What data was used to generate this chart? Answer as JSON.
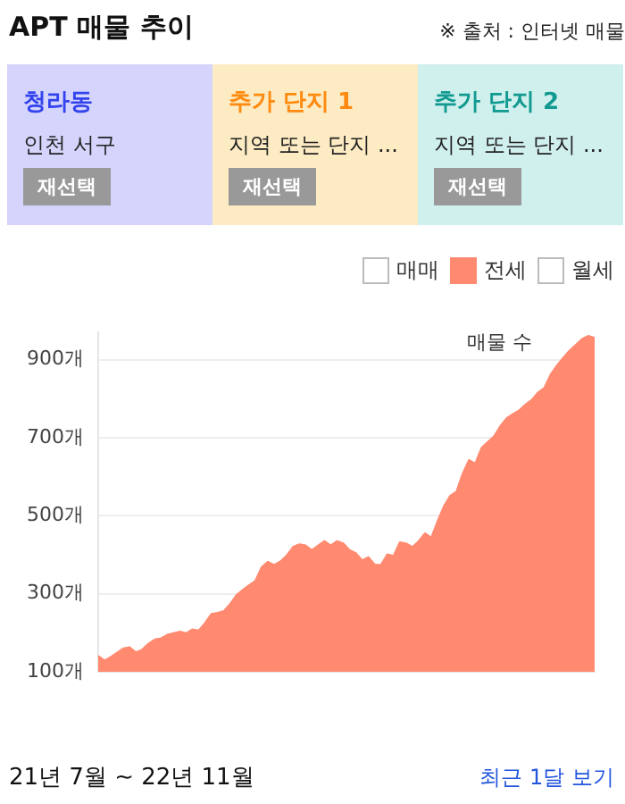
{
  "chart_data": {
    "type": "area",
    "title": "APT 매물 추이",
    "ylabel": "매물 수",
    "annotations": [
      "※ 출처 : 인터넷 매물",
      "청라동",
      "인천 서구",
      "재선택",
      "추가 단지 1",
      "지역 또는 단지 ...",
      "재선택",
      "추가 단지 2",
      "지역 또는 단지 ...",
      "재선택",
      "21년 7월 ~ 22년 11월",
      "최근 1달 보기"
    ],
    "categories": [
      null,
      null,
      null,
      null,
      null,
      null,
      null,
      null,
      null,
      null,
      null,
      null,
      null,
      null,
      null,
      null,
      null,
      null,
      null,
      null,
      null,
      null,
      null,
      null,
      null,
      null,
      null,
      null,
      null,
      null,
      null,
      null,
      null,
      null,
      null,
      null,
      null,
      null,
      null,
      null,
      null,
      null,
      null,
      null,
      null,
      null,
      null,
      null,
      null,
      null,
      null,
      null,
      null,
      null,
      null,
      null,
      null,
      null,
      null,
      null,
      null,
      null,
      null,
      null,
      null,
      null,
      null,
      null,
      null,
      null,
      null,
      null,
      null,
      null,
      null,
      null,
      null,
      null,
      null,
      null
    ],
    "series": [
      {
        "name": "매매",
        "color": "#ffffff",
        "values": [
          null,
          null,
          null,
          null,
          null,
          null,
          null,
          null,
          null,
          null,
          null,
          null,
          null,
          null,
          null,
          null,
          null,
          null,
          null,
          null,
          null,
          null,
          null,
          null,
          null,
          null,
          null,
          null,
          null,
          null,
          null,
          null,
          null,
          null,
          null,
          null,
          null,
          null,
          null,
          null,
          null,
          null,
          null,
          null,
          null,
          null,
          null,
          null,
          null,
          null,
          null,
          null,
          null,
          null,
          null,
          null,
          null,
          null,
          null,
          null,
          null,
          null,
          null,
          null,
          null,
          null,
          null,
          null,
          null,
          null,
          null,
          null,
          null,
          null,
          null,
          null,
          null,
          null,
          null,
          null
        ]
      },
      {
        "name": "전세",
        "color": "#ff8a70",
        "values": [
          141,
          129,
          138,
          149,
          160,
          163,
          150,
          157,
          172,
          183,
          186,
          195,
          199,
          203,
          199,
          209,
          206,
          225,
          248,
          251,
          256,
          274,
          297,
          310,
          322,
          333,
          368,
          382,
          374,
          383,
          398,
          420,
          427,
          424,
          412,
          424,
          435,
          424,
          435,
          429,
          412,
          404,
          386,
          394,
          375,
          374,
          401,
          397,
          432,
          429,
          420,
          435,
          455,
          444,
          486,
          524,
          551,
          562,
          608,
          643,
          634,
          674,
          689,
          704,
          730,
          750,
          761,
          770,
          785,
          797,
          816,
          828,
          862,
          885,
          905,
          923,
          938,
          953,
          961,
          956
        ]
      },
      {
        "name": "월세",
        "color": "#ffffff",
        "values": [
          null,
          null,
          null,
          null,
          null,
          null,
          null,
          null,
          null,
          null,
          null,
          null,
          null,
          null,
          null,
          null,
          null,
          null,
          null,
          null,
          null,
          null,
          null,
          null,
          null,
          null,
          null,
          null,
          null,
          null,
          null,
          null,
          null,
          null,
          null,
          null,
          null,
          null,
          null,
          null,
          null,
          null,
          null,
          null,
          null,
          null,
          null,
          null,
          null,
          null,
          null,
          null,
          null,
          null,
          null,
          null,
          null,
          null,
          null,
          null,
          null,
          null,
          null,
          null,
          null,
          null,
          null,
          null,
          null,
          null,
          null,
          null,
          null,
          null,
          null,
          null,
          null,
          null,
          null,
          null
        ]
      }
    ],
    "ylim": [
      100,
      970
    ],
    "yticks": [
      {
        "value": 100,
        "label": "100개"
      },
      {
        "value": 300,
        "label": "300개"
      },
      {
        "value": 500,
        "label": "500개"
      },
      {
        "value": 700,
        "label": "700개"
      },
      {
        "value": 900,
        "label": "900개"
      }
    ],
    "grid": "y",
    "legend": "top right"
  }
}
